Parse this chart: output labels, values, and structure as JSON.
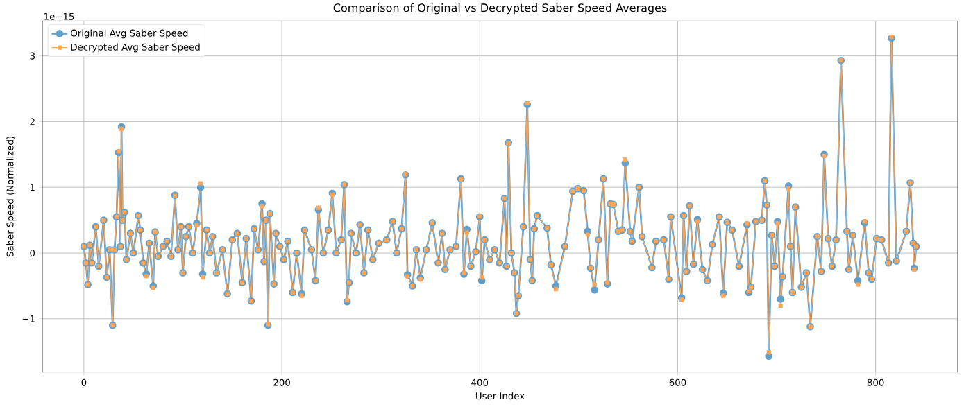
{
  "chart_data": {
    "type": "line",
    "title": "Comparison of Original vs Decrypted Saber Speed Averages",
    "xlabel": "User Index",
    "ylabel": "Saber Speed (Normalized)",
    "annotations": [
      "1e−15"
    ],
    "x": [
      0,
      2,
      4,
      6,
      8,
      12,
      15,
      20,
      23,
      26,
      29,
      31,
      33,
      35,
      37,
      38,
      39,
      41,
      43,
      47,
      50,
      55,
      57,
      60,
      63,
      66,
      70,
      72,
      75,
      80,
      84,
      88,
      92,
      95,
      98,
      100,
      103,
      106,
      110,
      114,
      118,
      120,
      124,
      127,
      130,
      134,
      140,
      145,
      150,
      155,
      160,
      164,
      169,
      172,
      176,
      180,
      182,
      184,
      186,
      188,
      192,
      194,
      198,
      202,
      206,
      211,
      215,
      220,
      223,
      230,
      234,
      237,
      242,
      247,
      251,
      255,
      260,
      263,
      266,
      268,
      270,
      275,
      279,
      283,
      287,
      292,
      298,
      306,
      312,
      316,
      321,
      325,
      327,
      332,
      336,
      340,
      346,
      352,
      358,
      362,
      365,
      370,
      376,
      381,
      384,
      387,
      391,
      396,
      400,
      402,
      405,
      410,
      415,
      420,
      425,
      427,
      429,
      432,
      435,
      437,
      439,
      444,
      448,
      451,
      453,
      455,
      458,
      468,
      472,
      477,
      486,
      494,
      499,
      505,
      509,
      512,
      516,
      520,
      525,
      529,
      532,
      535,
      540,
      544,
      547,
      552,
      554,
      561,
      564,
      574,
      578,
      586,
      591,
      593,
      604,
      606,
      609,
      612,
      616,
      620,
      625,
      630,
      635,
      642,
      646,
      650,
      655,
      662,
      670,
      672,
      674,
      679,
      685,
      688,
      690,
      692,
      695,
      698,
      701,
      704,
      706,
      712,
      714,
      716,
      719,
      725,
      730,
      734,
      741,
      745,
      748,
      752,
      756,
      760,
      765,
      771,
      773,
      777,
      782,
      789,
      793,
      796,
      801,
      806,
      813,
      816,
      821,
      831,
      835,
      838,
      839,
      841
    ],
    "series": [
      {
        "name": "Original Avg Saber Speed",
        "color": "#62a0cb",
        "marker": "circle",
        "values": [
          0.1,
          -0.15,
          -0.48,
          0.12,
          -0.15,
          0.4,
          -0.2,
          0.5,
          -0.37,
          0.05,
          -1.1,
          0.05,
          0.55,
          1.53,
          0.1,
          1.92,
          0.5,
          0.62,
          -0.1,
          0.3,
          0.0,
          0.57,
          0.35,
          -0.15,
          -0.32,
          0.15,
          -0.5,
          0.32,
          -0.05,
          0.1,
          0.18,
          -0.05,
          0.88,
          0.05,
          0.4,
          -0.3,
          0.25,
          0.4,
          0.0,
          0.45,
          1.0,
          -0.32,
          0.35,
          0.0,
          0.25,
          -0.3,
          0.05,
          -0.62,
          0.2,
          0.3,
          -0.45,
          0.22,
          -0.73,
          0.37,
          0.05,
          0.75,
          -0.13,
          0.5,
          -1.1,
          0.6,
          -0.47,
          0.3,
          0.1,
          -0.1,
          0.18,
          -0.6,
          0.0,
          -0.62,
          0.35,
          0.05,
          -0.42,
          0.66,
          0.0,
          0.35,
          0.91,
          0.0,
          0.2,
          1.04,
          -0.74,
          -0.45,
          0.3,
          0.0,
          0.43,
          -0.3,
          0.35,
          -0.1,
          0.15,
          0.2,
          0.48,
          0.0,
          0.37,
          1.19,
          -0.33,
          -0.5,
          0.05,
          -0.38,
          0.05,
          0.46,
          -0.15,
          0.3,
          -0.25,
          0.05,
          0.1,
          1.13,
          -0.32,
          0.36,
          -0.2,
          0.02,
          0.55,
          -0.42,
          0.2,
          -0.1,
          0.05,
          -0.15,
          0.83,
          -0.2,
          1.68,
          0.0,
          -0.3,
          -0.92,
          -0.65,
          0.4,
          2.26,
          -0.1,
          -0.42,
          0.37,
          0.57,
          0.38,
          -0.18,
          -0.5,
          0.1,
          0.94,
          0.98,
          0.95,
          0.33,
          -0.23,
          -0.56,
          0.2,
          1.13,
          -0.47,
          0.75,
          0.74,
          0.33,
          0.35,
          1.37,
          0.33,
          0.18,
          1.0,
          0.25,
          -0.22,
          0.18,
          0.2,
          -0.4,
          0.55,
          -0.68,
          0.57,
          -0.28,
          0.72,
          -0.17,
          0.51,
          -0.25,
          -0.42,
          0.13,
          0.55,
          -0.61,
          0.47,
          0.35,
          -0.2,
          0.43,
          -0.6,
          -0.52,
          0.48,
          0.5,
          1.1,
          0.73,
          -1.57,
          0.27,
          -0.2,
          0.48,
          -0.7,
          -0.36,
          1.02,
          0.1,
          -0.6,
          0.7,
          -0.52,
          -0.3,
          -1.12,
          0.25,
          -0.28,
          1.5,
          0.22,
          -0.2,
          0.2,
          2.93,
          0.33,
          -0.25,
          0.27,
          -0.42,
          0.46,
          -0.3,
          -0.4,
          0.22,
          0.2,
          -0.15,
          3.27,
          -0.12,
          0.33,
          1.07,
          0.15,
          -0.23,
          0.1
        ]
      },
      {
        "name": "Decrypted Avg Saber Speed",
        "color": "#ffa556",
        "marker": "square",
        "values": [
          0.1,
          -0.15,
          -0.48,
          0.12,
          -0.15,
          0.4,
          -0.2,
          0.5,
          -0.37,
          0.05,
          -1.1,
          0.05,
          0.55,
          1.55,
          0.1,
          1.89,
          0.5,
          0.62,
          -0.1,
          0.3,
          0.0,
          0.57,
          0.35,
          -0.15,
          -0.35,
          0.15,
          -0.53,
          0.32,
          -0.05,
          0.1,
          0.18,
          -0.05,
          0.87,
          0.05,
          0.4,
          -0.3,
          0.25,
          0.4,
          0.0,
          0.42,
          1.06,
          -0.37,
          0.35,
          0.0,
          0.25,
          -0.3,
          0.05,
          -0.62,
          0.2,
          0.3,
          -0.45,
          0.22,
          -0.73,
          0.37,
          0.05,
          0.71,
          -0.13,
          0.5,
          -1.08,
          0.6,
          -0.47,
          0.3,
          0.1,
          -0.1,
          0.18,
          -0.6,
          0.0,
          -0.65,
          0.35,
          0.05,
          -0.42,
          0.69,
          0.0,
          0.35,
          0.89,
          0.0,
          0.2,
          1.04,
          -0.72,
          -0.45,
          0.3,
          0.0,
          0.43,
          -0.3,
          0.35,
          -0.1,
          0.15,
          0.2,
          0.48,
          0.0,
          0.37,
          1.2,
          -0.35,
          -0.5,
          0.05,
          -0.4,
          0.05,
          0.46,
          -0.15,
          0.3,
          -0.25,
          0.05,
          0.1,
          1.12,
          -0.3,
          0.31,
          -0.2,
          0.02,
          0.56,
          -0.37,
          0.2,
          -0.1,
          0.05,
          -0.15,
          0.83,
          -0.2,
          1.67,
          0.0,
          -0.3,
          -0.92,
          -0.65,
          0.4,
          2.29,
          -0.1,
          -0.42,
          0.37,
          0.57,
          0.38,
          -0.18,
          -0.55,
          0.1,
          0.94,
          0.98,
          0.95,
          0.28,
          -0.23,
          -0.48,
          0.2,
          1.13,
          -0.45,
          0.75,
          0.74,
          0.33,
          0.35,
          1.42,
          0.33,
          0.18,
          1.0,
          0.25,
          -0.22,
          0.18,
          0.2,
          -0.4,
          0.55,
          -0.71,
          0.57,
          -0.28,
          0.72,
          -0.17,
          0.48,
          -0.25,
          -0.42,
          0.13,
          0.55,
          -0.65,
          0.47,
          0.35,
          -0.2,
          0.45,
          -0.58,
          -0.52,
          0.48,
          0.5,
          1.1,
          0.73,
          -1.51,
          0.27,
          -0.2,
          0.45,
          -0.8,
          -0.36,
          0.98,
          0.1,
          -0.6,
          0.7,
          -0.52,
          -0.3,
          -1.12,
          0.25,
          -0.28,
          1.48,
          0.22,
          -0.2,
          0.2,
          2.93,
          0.33,
          -0.25,
          0.27,
          -0.48,
          0.48,
          -0.3,
          -0.4,
          0.22,
          0.2,
          -0.15,
          3.29,
          -0.12,
          0.33,
          1.07,
          0.15,
          -0.25,
          0.1
        ]
      }
    ],
    "xlim": [
      -42,
      883
    ],
    "ylim": [
      -1.81,
      3.53
    ],
    "xticks": [
      0,
      200,
      400,
      600,
      800
    ],
    "yticks": [
      {
        "value": -1,
        "label": "−1"
      },
      0,
      1,
      2,
      3
    ],
    "grid": true,
    "legend": "top left",
    "line_style": "solid"
  }
}
